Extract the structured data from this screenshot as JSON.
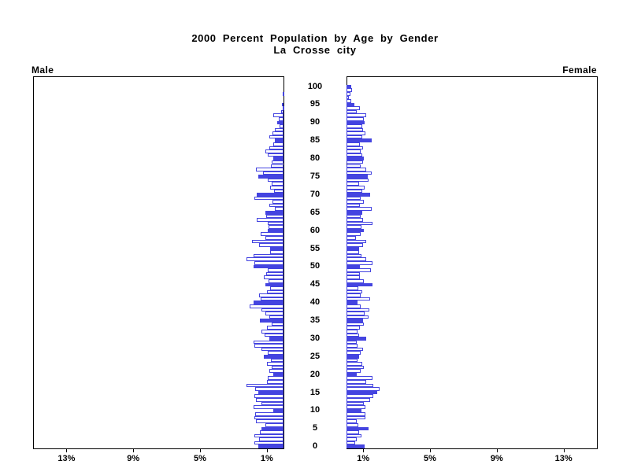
{
  "title": {
    "line1": "2000 Percent Population by Age by Gender",
    "line2": "La Crosse city"
  },
  "left_header": "Male",
  "right_header": "Female",
  "colors": {
    "bar_blue": "#4444e0",
    "axis_black": "#000000",
    "hollow_fill": "#ffffff"
  },
  "chart_data": {
    "type": "bar",
    "subtype": "population-pyramid",
    "title": "2000 Percent Population by Age by Gender",
    "subtitle": "La Crosse city",
    "age_min": 0,
    "age_max": 100,
    "age_step_labeled": 5,
    "age_tick_labels": [
      "0",
      "5",
      "10",
      "15",
      "20",
      "25",
      "30",
      "35",
      "40",
      "45",
      "50",
      "55",
      "60",
      "65",
      "70",
      "75",
      "80",
      "85",
      "90",
      "95",
      "100"
    ],
    "xlim_percent": [
      0,
      15
    ],
    "x_ticks_percent": [
      1,
      5,
      9,
      13
    ],
    "x_tick_labels_left": [
      "1%",
      "5%",
      "9%",
      "13%"
    ],
    "x_tick_labels_right": [
      "1%",
      "5%",
      "9%",
      "13%"
    ],
    "filled_bar_every": 5,
    "legend_position": "none",
    "grid": false,
    "series": [
      {
        "name": "Male",
        "values": [
          1.5,
          1.75,
          1.45,
          1.75,
          1.4,
          1.3,
          1.1,
          1.65,
          1.75,
          1.7,
          0.6,
          1.8,
          1.3,
          1.65,
          1.75,
          1.5,
          1.7,
          2.2,
          1.0,
          0.95,
          0.6,
          0.85,
          0.7,
          1.0,
          0.75,
          1.2,
          0.95,
          1.3,
          1.75,
          1.8,
          0.85,
          1.15,
          1.3,
          1.0,
          0.7,
          1.4,
          0.85,
          1.1,
          1.3,
          2.05,
          1.8,
          1.35,
          1.45,
          1.0,
          0.8,
          1.1,
          0.9,
          1.2,
          1.05,
          0.95,
          1.8,
          1.75,
          2.2,
          1.8,
          0.8,
          0.8,
          1.45,
          1.9,
          1.1,
          1.35,
          0.95,
          0.9,
          0.95,
          1.6,
          1.05,
          1.1,
          0.5,
          0.85,
          0.65,
          1.75,
          1.6,
          0.55,
          0.8,
          0.7,
          0.95,
          1.5,
          1.25,
          1.65,
          0.75,
          0.7,
          0.6,
          0.95,
          1.1,
          0.85,
          0.6,
          0.5,
          0.85,
          0.65,
          0.5,
          0.25,
          0.4,
          0.3,
          0.6,
          0.15,
          0.05,
          0.1,
          0.0,
          0.0,
          0.05,
          0.0,
          0.0
        ]
      },
      {
        "name": "Female",
        "values": [
          1.1,
          0.5,
          0.6,
          0.9,
          0.75,
          1.3,
          0.7,
          0.6,
          1.15,
          1.15,
          0.9,
          1.15,
          1.05,
          1.4,
          1.6,
          1.85,
          2.0,
          1.6,
          1.2,
          1.55,
          0.63,
          0.85,
          1.05,
          0.95,
          0.65,
          0.75,
          0.85,
          1.0,
          0.65,
          0.6,
          1.2,
          0.75,
          0.65,
          0.8,
          1.05,
          1.0,
          1.3,
          1.1,
          1.35,
          0.85,
          0.65,
          1.4,
          0.85,
          0.95,
          0.7,
          1.55,
          1.05,
          0.8,
          0.8,
          1.45,
          0.8,
          1.55,
          1.2,
          0.9,
          0.75,
          0.75,
          1.0,
          1.2,
          0.55,
          0.85,
          1.05,
          0.9,
          1.55,
          1.0,
          0.85,
          0.95,
          1.5,
          0.8,
          1.05,
          0.85,
          1.4,
          0.95,
          1.1,
          0.75,
          1.3,
          1.25,
          1.5,
          1.2,
          0.85,
          1.0,
          1.05,
          0.95,
          0.85,
          1.0,
          0.8,
          1.5,
          0.95,
          1.15,
          1.0,
          0.95,
          1.1,
          1.05,
          1.2,
          0.6,
          0.8,
          0.45,
          0.3,
          0.15,
          0.25,
          0.35,
          0.3
        ]
      }
    ]
  }
}
